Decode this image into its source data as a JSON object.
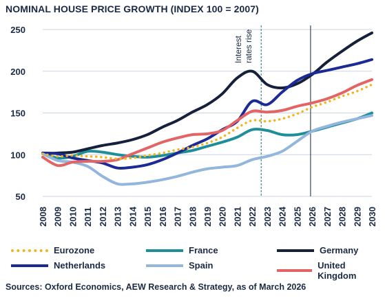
{
  "chart_data": {
    "type": "line",
    "title": "NOMINAL HOUSE PRICE GROWTH (INDEX 100 = 2007)",
    "xlabel": "",
    "ylabel": "",
    "x": [
      2008,
      2009,
      2010,
      2011,
      2012,
      2013,
      2014,
      2015,
      2016,
      2017,
      2018,
      2019,
      2020,
      2021,
      2022,
      2023,
      2024,
      2025,
      2026,
      2027,
      2028,
      2029,
      2030
    ],
    "x_tick_labels": [
      "2008",
      "2009",
      "2010",
      "2011",
      "2012",
      "2013",
      "2014",
      "2015",
      "2016",
      "2017",
      "2018",
      "2019",
      "2020",
      "2021",
      "2022",
      "2023",
      "2024",
      "2025",
      "2026",
      "2027",
      "2028",
      "2029",
      "2030"
    ],
    "ylim": [
      50,
      250
    ],
    "y_ticks": [
      50,
      100,
      150,
      200,
      250
    ],
    "grid": "horizontal",
    "series": [
      {
        "name": "Eurozone",
        "color": "#f2b51c",
        "style": "dotted",
        "values": [
          101,
          98,
          99,
          98,
          97,
          95,
          96,
          99,
          102,
          106,
          109,
          114,
          121,
          132,
          141,
          140,
          143,
          149,
          157,
          163,
          170,
          176,
          184
        ]
      },
      {
        "name": "France",
        "color": "#1f8e99",
        "style": "solid",
        "values": [
          102,
          96,
          98,
          104,
          103,
          100,
          98,
          97,
          99,
          102,
          105,
          110,
          115,
          121,
          130,
          129,
          124,
          124,
          128,
          133,
          138,
          143,
          150
        ]
      },
      {
        "name": "Germany",
        "color": "#15213a",
        "style": "solid",
        "values": [
          101,
          102,
          103,
          107,
          111,
          114,
          118,
          124,
          133,
          141,
          151,
          160,
          173,
          192,
          200,
          184,
          180,
          185,
          196,
          211,
          224,
          236,
          246
        ]
      },
      {
        "name": "Netherlands",
        "color": "#1b2a94",
        "style": "solid",
        "values": [
          102,
          101,
          96,
          93,
          90,
          84,
          85,
          88,
          94,
          102,
          111,
          119,
          130,
          140,
          164,
          160,
          175,
          189,
          197,
          201,
          205,
          209,
          214
        ]
      },
      {
        "name": "Spain",
        "color": "#92b6dc",
        "style": "solid",
        "values": [
          101,
          93,
          91,
          86,
          74,
          65,
          65,
          67,
          70,
          74,
          79,
          83,
          85,
          87,
          94,
          98,
          104,
          116,
          128,
          134,
          139,
          143,
          147
        ]
      },
      {
        "name": "United Kingdom",
        "color": "#e36464",
        "style": "solid",
        "values": [
          97,
          87,
          91,
          92,
          92,
          94,
          101,
          108,
          115,
          120,
          124,
          125,
          129,
          141,
          152,
          151,
          153,
          158,
          162,
          167,
          174,
          183,
          190
        ]
      }
    ],
    "annotations": [
      {
        "text": "Interest rates rise",
        "x": 2022.6,
        "style": "dashed",
        "color": "#1f6e7a"
      },
      {
        "text": "",
        "x": 2025.9,
        "style": "solid",
        "color": "#15213a"
      }
    ]
  },
  "legend": {
    "items": [
      {
        "label": "Eurozone"
      },
      {
        "label": "France"
      },
      {
        "label": "Germany"
      },
      {
        "label": "Netherlands"
      },
      {
        "label": "Spain"
      },
      {
        "label": "United Kingdom"
      }
    ]
  },
  "annotation": {
    "line1": "Interest",
    "line2": "rates rise"
  },
  "source": "Sources: Oxford Economics, AEW Research & Strategy, as of March 2026"
}
